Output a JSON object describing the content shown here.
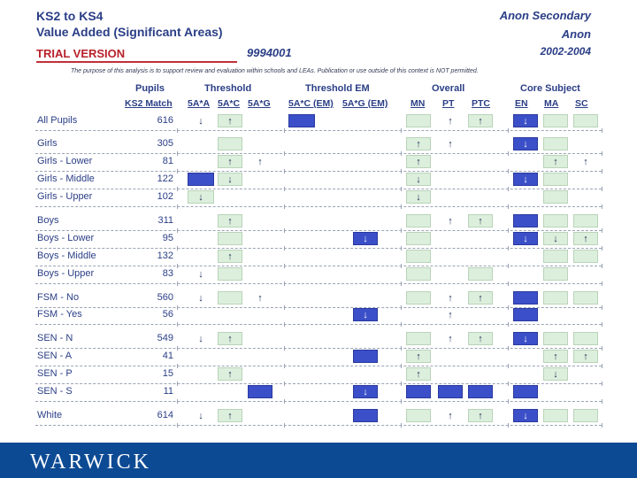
{
  "header": {
    "title_line1": "KS2 to KS4",
    "title_line2": "Value Added (Significant Areas)",
    "trial": "TRIAL VERSION",
    "code": "9994001",
    "school": "Anon Secondary",
    "lea": "Anon",
    "years": "2002-2004",
    "disclaimer": "The purpose of this analysis is to support review and evaluation within schools and LEAs. Publication or use outside of this context is NOT permitted."
  },
  "groups": [
    "Pupils",
    "Threshold",
    "Threshold EM",
    "Overall",
    "Core Subject"
  ],
  "columns": [
    "KS2 Match",
    "5A*A",
    "5A*C",
    "5A*G",
    "5A*C (EM)",
    "5A*G (EM)",
    "MN",
    "PT",
    "PTC",
    "EN",
    "MA",
    "SC"
  ],
  "arrow_glyphs": {
    "up": "↑",
    "down": "↓"
  },
  "colors": {
    "significant_blue": "#3b4fc8",
    "neutral_green": "#dcefdc",
    "footer_blue": "#0d4a94",
    "trial_red": "#b8202a"
  },
  "rows": [
    {
      "label": "All Pupils",
      "value": "616"
    },
    {
      "label": "Girls",
      "value": "305"
    },
    {
      "label": "Girls - Lower",
      "value": "81"
    },
    {
      "label": "Girls - Middle",
      "value": "122"
    },
    {
      "label": "Girls - Upper",
      "value": "102"
    },
    {
      "label": "Boys",
      "value": "311"
    },
    {
      "label": "Boys - Lower",
      "value": "95"
    },
    {
      "label": "Boys - Middle",
      "value": "132"
    },
    {
      "label": "Boys - Upper",
      "value": "83"
    },
    {
      "label": "FSM - No",
      "value": "560"
    },
    {
      "label": "FSM - Yes",
      "value": "56"
    },
    {
      "label": "SEN - N",
      "value": "549"
    },
    {
      "label": "SEN - A",
      "value": "41"
    },
    {
      "label": "SEN - P",
      "value": "15"
    },
    {
      "label": "SEN - S",
      "value": "11"
    },
    {
      "label": "White",
      "value": "614"
    }
  ],
  "cells": [
    [
      "mark-down",
      "green-up",
      "",
      "blue",
      "",
      "green",
      "up",
      "green-up",
      "blue-down",
      "green",
      "green"
    ],
    [
      "",
      "green",
      "",
      "",
      "",
      "green-up",
      "up",
      "",
      "blue-down",
      "green",
      ""
    ],
    [
      "",
      "green-up",
      "up",
      "",
      "",
      "green-up",
      "",
      "",
      "",
      "green-up",
      "up"
    ],
    [
      "blue",
      "green-down",
      "",
      "",
      "",
      "green-down",
      "",
      "",
      "blue-down",
      "green",
      ""
    ],
    [
      "green-down",
      "",
      "",
      "",
      "",
      "green-down",
      "",
      "",
      "",
      "green",
      ""
    ],
    [
      "",
      "green-up",
      "",
      "",
      "",
      "green",
      "up",
      "green-up",
      "blue",
      "green",
      "green"
    ],
    [
      "",
      "green",
      "",
      "",
      "blue-down",
      "green",
      "",
      "",
      "blue-down",
      "green-down",
      "green-up"
    ],
    [
      "",
      "green-up",
      "",
      "",
      "",
      "green",
      "",
      "",
      "",
      "green",
      "green"
    ],
    [
      "mark-down",
      "green",
      "",
      "",
      "",
      "green",
      "",
      "green",
      "",
      "green",
      ""
    ],
    [
      "mark-down",
      "green",
      "up",
      "",
      "",
      "green",
      "up",
      "green-up",
      "blue",
      "green",
      "green"
    ],
    [
      "",
      "",
      "",
      "",
      "blue-down",
      "",
      "up",
      "",
      "blue",
      "",
      ""
    ],
    [
      "mark-down",
      "green-up",
      "",
      "",
      "",
      "green",
      "up",
      "green-up",
      "blue-down",
      "green",
      "green"
    ],
    [
      "",
      "",
      "",
      "",
      "blue",
      "green-up",
      "",
      "",
      "",
      "green-up",
      "green-up"
    ],
    [
      "",
      "green-up",
      "",
      "",
      "",
      "green-up",
      "",
      "",
      "",
      "green-down",
      ""
    ],
    [
      "",
      "",
      "blue",
      "",
      "blue-down",
      "blue",
      "blue",
      "blue",
      "blue",
      "",
      ""
    ],
    [
      "mark-down",
      "green-up",
      "",
      "",
      "blue",
      "green",
      "up",
      "green-up",
      "blue-down",
      "green",
      "green"
    ]
  ],
  "footer": {
    "logo": "WARWICK"
  }
}
